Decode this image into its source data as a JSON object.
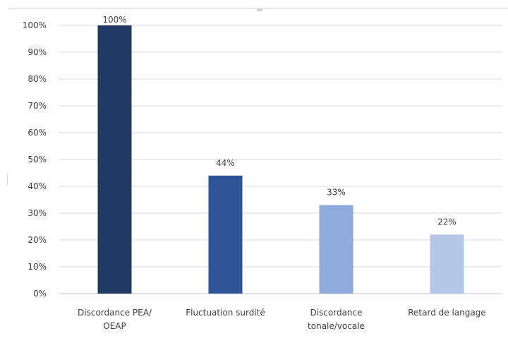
{
  "chart_data": {
    "type": "bar",
    "categories": [
      [
        "Discordance PEA/",
        "OEAP"
      ],
      [
        "Fluctuation surdité"
      ],
      [
        "Discordance",
        "tonale/vocale"
      ],
      [
        "Retard de langage"
      ]
    ],
    "values": [
      100,
      44,
      33,
      22
    ],
    "data_labels": [
      "100%",
      "44%",
      "33%",
      "22%"
    ],
    "bar_colors": [
      "#1f3864",
      "#2f5597",
      "#8faadc",
      "#b4c7e7"
    ],
    "ylim": [
      0,
      100
    ],
    "yticks": [
      0,
      10,
      20,
      30,
      40,
      50,
      60,
      70,
      80,
      90,
      100
    ],
    "ytick_labels": [
      "0%",
      "10%",
      "20%",
      "30%",
      "40%",
      "50%",
      "60%",
      "70%",
      "80%",
      "90%",
      "100%"
    ],
    "grid": true,
    "legend": "none",
    "title": "",
    "xlabel": "",
    "ylabel": ""
  }
}
